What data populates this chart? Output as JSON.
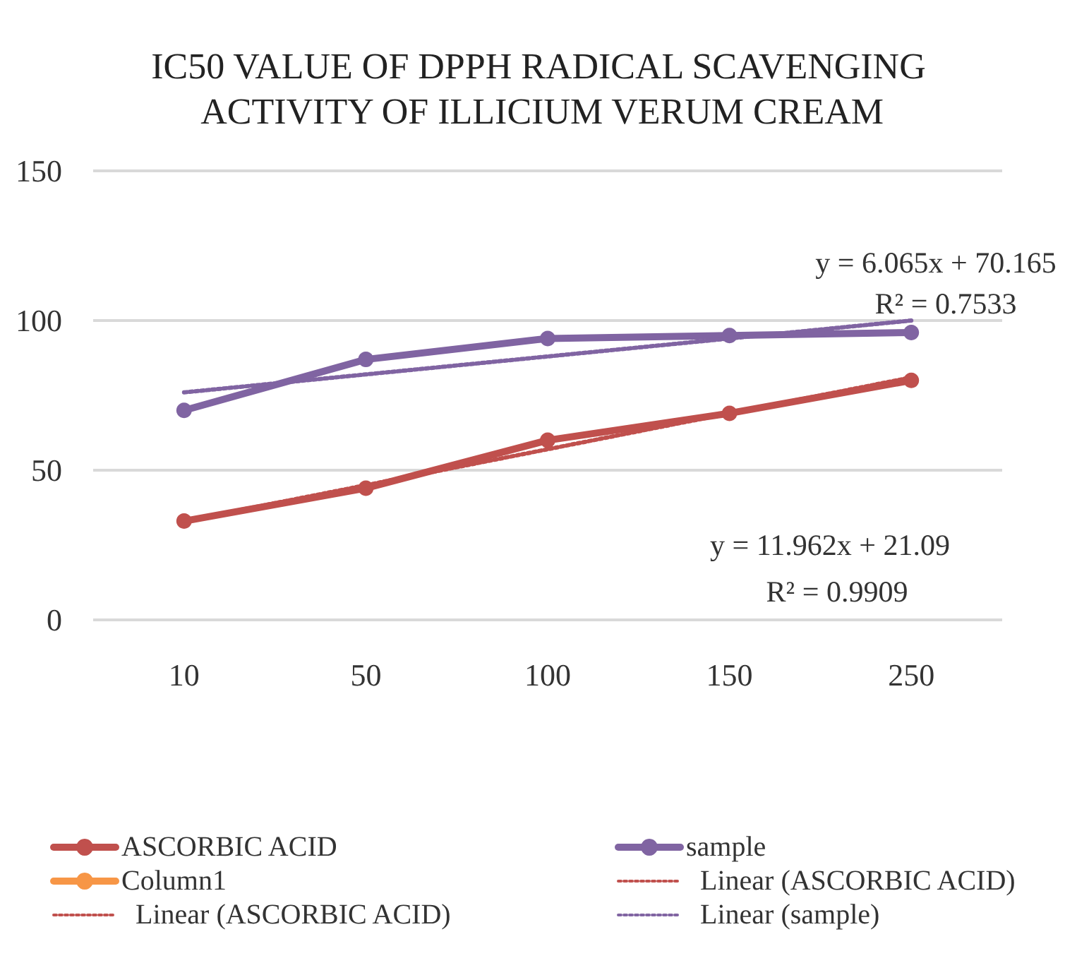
{
  "chart_data": {
    "type": "line",
    "title": "IC50 VALUE OF DPPH RADICAL SCAVENGING ACTIVITY OF ILLICIUM VERUM CREAM",
    "categories": [
      "10",
      "50",
      "100",
      "150",
      "250"
    ],
    "series": [
      {
        "name": "ASCORBIC ACID",
        "color": "#c0504d",
        "values": [
          33,
          44,
          60,
          69,
          80
        ]
      },
      {
        "name": "sample",
        "color": "#8064a2",
        "values": [
          70,
          87,
          94,
          95,
          96
        ]
      },
      {
        "name": "Column1",
        "color": "#f79646",
        "values": [
          null,
          null,
          null,
          null,
          null
        ]
      },
      {
        "name": "Linear (ASCORBIC ACID)",
        "color": "#c0504d",
        "line_style": "dotted",
        "marker": "none",
        "values": [
          33,
          45,
          57,
          69,
          81
        ]
      },
      {
        "name": "Linear (ASCORBIC ACID)",
        "color": "#c0504d",
        "line_style": "dotted",
        "marker": "none",
        "values": [
          null,
          null,
          null,
          null,
          null
        ]
      },
      {
        "name": "Linear (sample)",
        "color": "#8064a2",
        "line_style": "dotted",
        "marker": "none",
        "values": [
          76,
          82,
          88,
          94,
          100
        ]
      }
    ],
    "ylim": [
      0,
      150
    ],
    "yticks": [
      0,
      50,
      100,
      150
    ],
    "grid": "y",
    "legend": "bottom",
    "marker": "circle",
    "line_style": "solid",
    "annotations": [
      "y = 6.065x + 70.165",
      "R² = 0.7533",
      "y = 11.962x + 21.09",
      "R² = 0.9909"
    ]
  }
}
